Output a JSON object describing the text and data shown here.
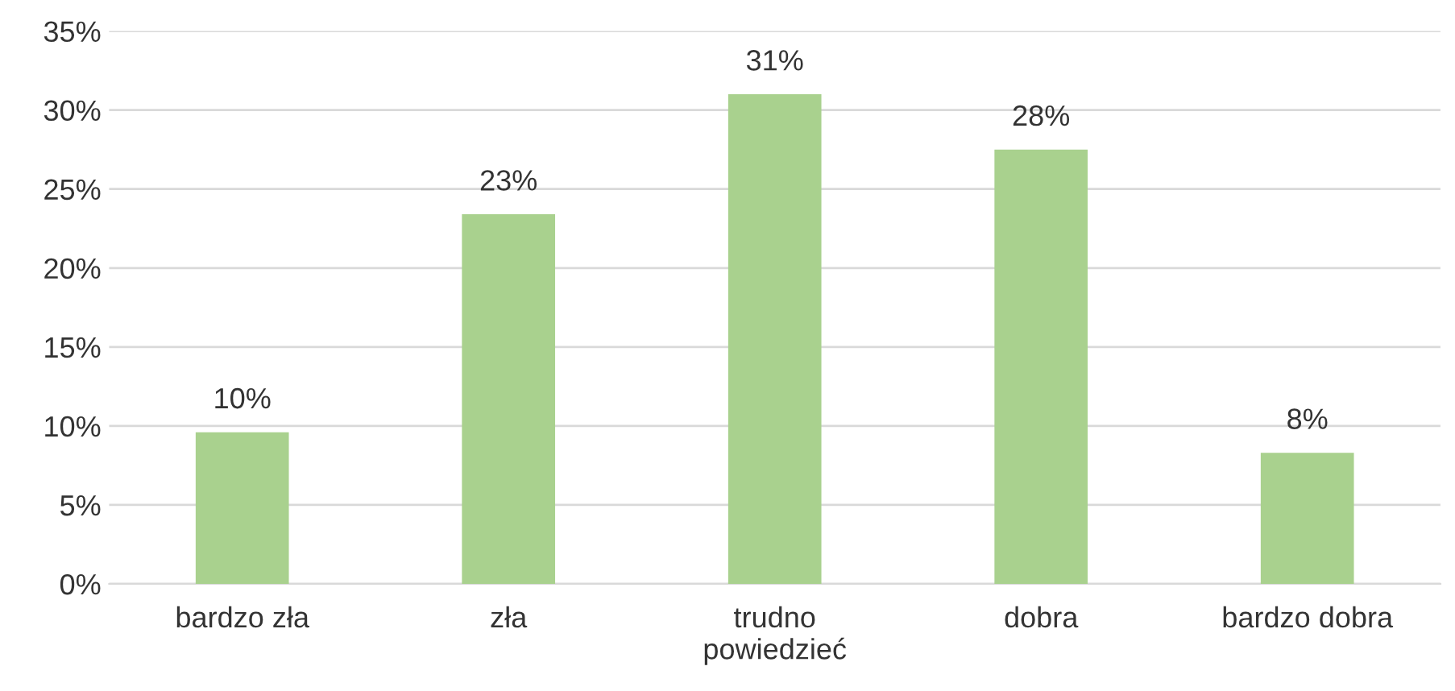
{
  "chart_data": {
    "type": "bar",
    "categories": [
      "bardzo zła",
      "zła",
      "trudno powiedzieć",
      "dobra",
      "bardzo dobra"
    ],
    "values": [
      9.6,
      23.4,
      31,
      27.5,
      8.3
    ],
    "value_labels": [
      "10%",
      "23%",
      "31%",
      "28%",
      "8%"
    ],
    "color": "#a9d18e",
    "ylim": [
      0,
      35
    ],
    "yticks": [
      {
        "value": 0,
        "label": "0%"
      },
      {
        "value": 5,
        "label": "5%"
      },
      {
        "value": 10,
        "label": "10%"
      },
      {
        "value": 15,
        "label": "15%"
      },
      {
        "value": 20,
        "label": "20%"
      },
      {
        "value": 25,
        "label": "25%"
      },
      {
        "value": 30,
        "label": "30%"
      },
      {
        "value": 35,
        "label": "35%"
      }
    ],
    "grid": "y",
    "legend": false
  }
}
